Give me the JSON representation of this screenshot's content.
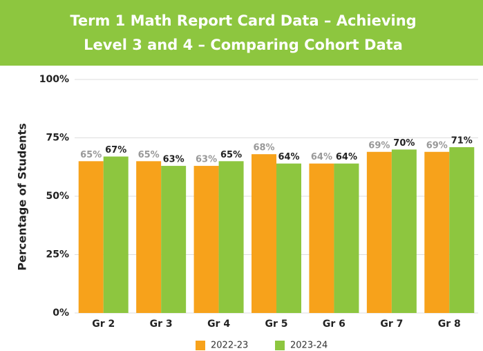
{
  "chart_data": {
    "type": "bar",
    "title": [
      "Term 1 Math Report Card Data – Achieving",
      "Level 3 and 4 – Comparing Cohort Data"
    ],
    "y_label": "Percentage of Students",
    "categories": [
      "Gr 2",
      "Gr 3",
      "Gr 4",
      "Gr 5",
      "Gr 6",
      "Gr 7",
      "Gr 8"
    ],
    "series": [
      {
        "name": "2022-23",
        "color": "#f7a21b",
        "label_color": "#999999",
        "values": [
          65,
          65,
          63,
          68,
          64,
          69,
          69
        ],
        "value_labels": [
          "65%",
          "65%",
          "63%",
          "68%",
          "64%",
          "69%",
          "69%"
        ]
      },
      {
        "name": "2023-24",
        "color": "#8dc63f",
        "label_color": "#222222",
        "values": [
          67,
          63,
          65,
          64,
          64,
          70,
          71
        ],
        "value_labels": [
          "67%",
          "63%",
          "65%",
          "64%",
          "64%",
          "70%",
          "71%"
        ]
      }
    ],
    "ylim": [
      0,
      100
    ],
    "yticks": [
      {
        "value": 0,
        "label": "0%"
      },
      {
        "value": 25,
        "label": "25%"
      },
      {
        "value": 50,
        "label": "50%"
      },
      {
        "value": 75,
        "label": "75%"
      },
      {
        "value": 100,
        "label": "100%"
      }
    ],
    "grid": true,
    "title_background": "#8dc63f"
  }
}
